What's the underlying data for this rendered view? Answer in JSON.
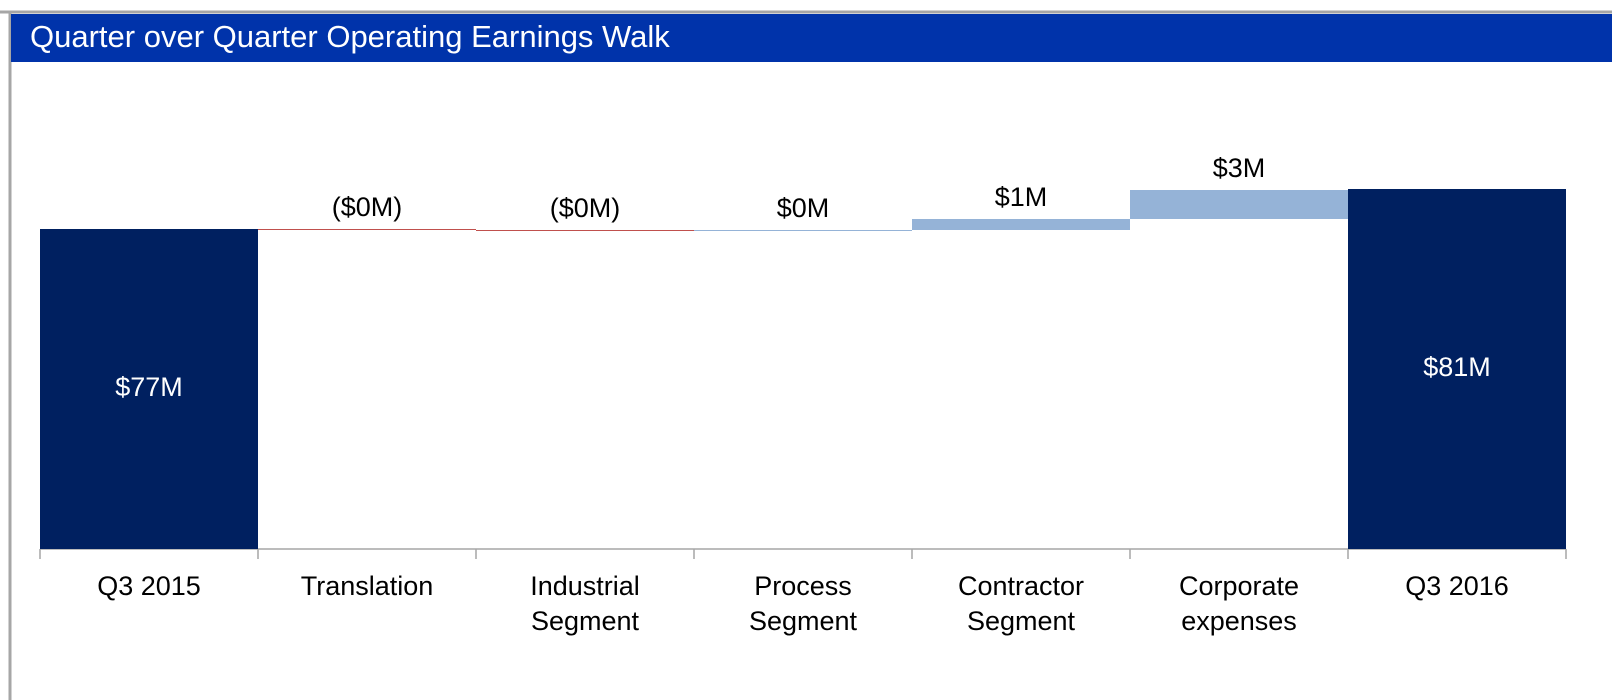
{
  "chart_data": {
    "type": "waterfall",
    "title": "Quarter over Quarter Operating Earnings Walk",
    "categories": [
      [
        "Q3 2015"
      ],
      [
        "Translation"
      ],
      [
        "Industrial",
        "Segment"
      ],
      [
        "Process",
        "Segment"
      ],
      [
        "Contractor",
        "Segment"
      ],
      [
        "Corporate",
        "expenses"
      ],
      [
        "Q3 2016"
      ]
    ],
    "values": [
      77,
      -0.1,
      -0.1,
      0.1,
      1.1,
      2.9,
      81
    ],
    "value_labels": [
      "$77M",
      "($0M)",
      "($0M)",
      "$0M",
      "$1M",
      "$3M",
      "$81M"
    ],
    "totals": [
      true,
      false,
      false,
      false,
      false,
      false,
      true
    ],
    "total_color": "#002060",
    "increase_color": "#95b3d7",
    "decrease_color": "#c0504d",
    "ylim": [
      45,
      85
    ]
  }
}
